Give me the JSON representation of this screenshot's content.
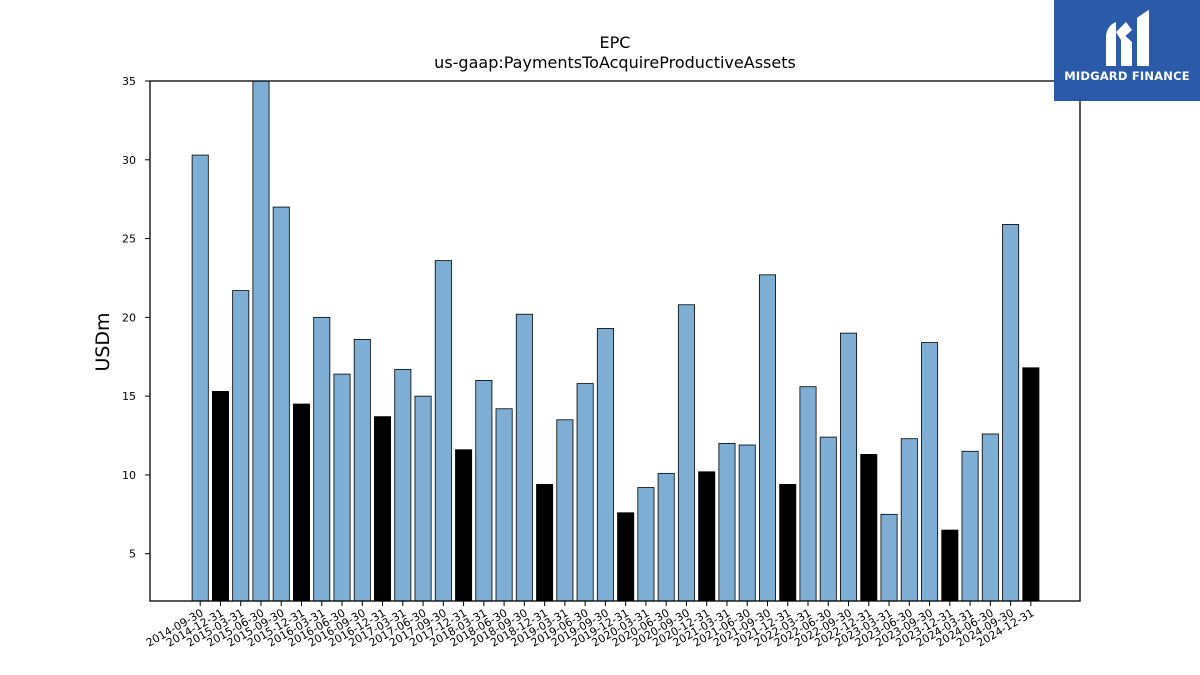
{
  "logo": {
    "text": "MIDGARD FINANCE"
  },
  "chart_data": {
    "type": "bar",
    "title": "EPC",
    "subtitle": "us-gaap:PaymentsToAcquireProductiveAssets",
    "xlabel": "",
    "ylabel": "USDm",
    "ylim": [
      2,
      35
    ],
    "yticks": [
      5,
      10,
      15,
      20,
      25,
      30,
      35
    ],
    "grid": false,
    "legend": "none",
    "colors": {
      "quarter": "#7eaed3",
      "year_end": "#000000",
      "edge": "#000000"
    },
    "categories": [
      "2014-09-30",
      "2014-12-31",
      "2015-03-31",
      "2015-06-30",
      "2015-09-30",
      "2015-12-31",
      "2016-03-31",
      "2016-06-30",
      "2016-09-30",
      "2016-12-31",
      "2017-03-31",
      "2017-06-30",
      "2017-09-30",
      "2017-12-31",
      "2018-03-31",
      "2018-06-30",
      "2018-09-30",
      "2018-12-31",
      "2019-03-31",
      "2019-06-30",
      "2019-09-30",
      "2019-12-31",
      "2020-03-31",
      "2020-06-30",
      "2020-09-30",
      "2020-12-31",
      "2021-03-31",
      "2021-06-30",
      "2021-09-30",
      "2021-12-31",
      "2022-03-31",
      "2022-06-30",
      "2022-09-30",
      "2022-12-31",
      "2023-03-31",
      "2023-06-30",
      "2023-09-30",
      "2023-12-31",
      "2024-03-31",
      "2024-06-30",
      "2024-09-30",
      "2024-12-31"
    ],
    "values": [
      30.3,
      15.3,
      21.7,
      35.3,
      27.0,
      14.5,
      20.0,
      16.4,
      18.6,
      13.7,
      16.7,
      15.0,
      23.6,
      11.6,
      16.0,
      14.2,
      20.2,
      9.4,
      13.5,
      15.8,
      19.3,
      7.6,
      9.2,
      10.1,
      20.8,
      10.2,
      12.0,
      11.9,
      22.7,
      9.4,
      15.6,
      12.4,
      19.0,
      11.3,
      7.5,
      12.3,
      18.4,
      6.5,
      11.5,
      12.6,
      25.9,
      16.8
    ]
  }
}
